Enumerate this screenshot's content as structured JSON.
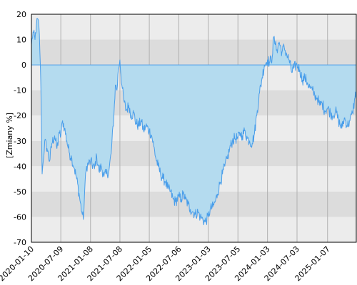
{
  "chart_data": {
    "type": "area",
    "title": "",
    "xlabel": "",
    "ylabel": "[Zmiany %]",
    "ylim": [
      -70,
      20
    ],
    "y_ticks": [
      20,
      10,
      0,
      -10,
      -20,
      -30,
      -40,
      -50,
      -60,
      -70
    ],
    "x_ticks": [
      "2020-01-10",
      "2020-07-09",
      "2021-01-08",
      "2021-07-08",
      "2022-01-05",
      "2022-07-06",
      "2023-01-03",
      "2023-07-05",
      "2024-01-03",
      "2024-07-03",
      "2025-01-07"
    ],
    "x_range": [
      "2020-01-10",
      "2025-07-03"
    ],
    "grid": true,
    "colors": {
      "line": "#4a9eea",
      "fill": "#b4dbef",
      "band_light": "#ececec",
      "band_dark": "#dcdcdc",
      "grid": "#b0b0b0",
      "border": "#000000",
      "zero_line": "#4a9eea"
    },
    "series": [
      {
        "points": [
          [
            "2020-01-10",
            8
          ],
          [
            "2020-01-20",
            13
          ],
          [
            "2020-02-01",
            10
          ],
          [
            "2020-02-10",
            16
          ],
          [
            "2020-02-20",
            18
          ],
          [
            "2020-02-28",
            12
          ],
          [
            "2020-03-05",
            0
          ],
          [
            "2020-03-10",
            -15
          ],
          [
            "2020-03-16",
            -43
          ],
          [
            "2020-03-23",
            -38
          ],
          [
            "2020-04-01",
            -30
          ],
          [
            "2020-04-15",
            -33
          ],
          [
            "2020-05-01",
            -38
          ],
          [
            "2020-05-15",
            -31
          ],
          [
            "2020-06-01",
            -28
          ],
          [
            "2020-06-15",
            -33
          ],
          [
            "2020-07-01",
            -27
          ],
          [
            "2020-07-09",
            -28
          ],
          [
            "2020-07-20",
            -22
          ],
          [
            "2020-08-01",
            -25
          ],
          [
            "2020-08-15",
            -30
          ],
          [
            "2020-09-01",
            -35
          ],
          [
            "2020-09-15",
            -37
          ],
          [
            "2020-10-01",
            -41
          ],
          [
            "2020-10-15",
            -45
          ],
          [
            "2020-11-01",
            -52
          ],
          [
            "2020-11-15",
            -58
          ],
          [
            "2020-11-25",
            -61
          ],
          [
            "2020-12-05",
            -47
          ],
          [
            "2020-12-15",
            -40
          ],
          [
            "2021-01-08",
            -38
          ],
          [
            "2021-02-01",
            -41
          ],
          [
            "2021-02-15",
            -36
          ],
          [
            "2021-03-01",
            -42
          ],
          [
            "2021-03-15",
            -40
          ],
          [
            "2021-04-01",
            -44
          ],
          [
            "2021-04-15",
            -43
          ],
          [
            "2021-05-01",
            -42
          ],
          [
            "2021-05-15",
            -35
          ],
          [
            "2021-06-01",
            -20
          ],
          [
            "2021-06-10",
            -8
          ],
          [
            "2021-06-20",
            -10
          ],
          [
            "2021-06-28",
            -2
          ],
          [
            "2021-07-08",
            2
          ],
          [
            "2021-07-20",
            -8
          ],
          [
            "2021-08-01",
            -14
          ],
          [
            "2021-08-15",
            -18
          ],
          [
            "2021-09-01",
            -16
          ],
          [
            "2021-09-15",
            -20
          ],
          [
            "2021-10-01",
            -19
          ],
          [
            "2021-10-15",
            -23
          ],
          [
            "2021-11-01",
            -24
          ],
          [
            "2021-11-15",
            -22
          ],
          [
            "2021-12-01",
            -26
          ],
          [
            "2021-12-15",
            -24
          ],
          [
            "2022-01-05",
            -26
          ],
          [
            "2022-01-20",
            -28
          ],
          [
            "2022-02-01",
            -32
          ],
          [
            "2022-02-15",
            -37
          ],
          [
            "2022-03-01",
            -40
          ],
          [
            "2022-03-15",
            -43
          ],
          [
            "2022-04-01",
            -45
          ],
          [
            "2022-04-15",
            -46
          ],
          [
            "2022-05-01",
            -49
          ],
          [
            "2022-05-15",
            -50
          ],
          [
            "2022-06-01",
            -53
          ],
          [
            "2022-06-15",
            -54
          ],
          [
            "2022-07-06",
            -52
          ],
          [
            "2022-07-20",
            -53
          ],
          [
            "2022-08-01",
            -51
          ],
          [
            "2022-08-15",
            -53
          ],
          [
            "2022-09-01",
            -55
          ],
          [
            "2022-09-15",
            -57
          ],
          [
            "2022-10-01",
            -58
          ],
          [
            "2022-10-15",
            -59
          ],
          [
            "2022-11-01",
            -58
          ],
          [
            "2022-11-15",
            -60
          ],
          [
            "2022-12-01",
            -61
          ],
          [
            "2022-12-15",
            -62
          ],
          [
            "2023-01-03",
            -60
          ],
          [
            "2023-01-15",
            -57
          ],
          [
            "2023-02-01",
            -56
          ],
          [
            "2023-02-15",
            -54
          ],
          [
            "2023-03-01",
            -51
          ],
          [
            "2023-03-15",
            -47
          ],
          [
            "2023-04-01",
            -43
          ],
          [
            "2023-04-15",
            -40
          ],
          [
            "2023-05-01",
            -37
          ],
          [
            "2023-05-15",
            -33
          ],
          [
            "2023-06-01",
            -30
          ],
          [
            "2023-06-15",
            -29
          ],
          [
            "2023-07-05",
            -29
          ],
          [
            "2023-07-20",
            -27
          ],
          [
            "2023-08-01",
            -28
          ],
          [
            "2023-08-15",
            -26
          ],
          [
            "2023-09-01",
            -29
          ],
          [
            "2023-09-15",
            -30
          ],
          [
            "2023-10-01",
            -31
          ],
          [
            "2023-10-15",
            -27
          ],
          [
            "2023-11-01",
            -18
          ],
          [
            "2023-11-15",
            -11
          ],
          [
            "2023-12-01",
            -5
          ],
          [
            "2023-12-15",
            0
          ],
          [
            "2024-01-03",
            2
          ],
          [
            "2024-01-15",
            1
          ],
          [
            "2024-02-01",
            3
          ],
          [
            "2024-02-10",
            11
          ],
          [
            "2024-02-20",
            8
          ],
          [
            "2024-03-01",
            6
          ],
          [
            "2024-03-15",
            9
          ],
          [
            "2024-04-01",
            5
          ],
          [
            "2024-04-15",
            7
          ],
          [
            "2024-05-01",
            4
          ],
          [
            "2024-05-15",
            2
          ],
          [
            "2024-06-01",
            -3
          ],
          [
            "2024-06-15",
            -1
          ],
          [
            "2024-07-03",
            0
          ],
          [
            "2024-07-20",
            -2
          ],
          [
            "2024-08-05",
            -6
          ],
          [
            "2024-08-20",
            -5
          ],
          [
            "2024-09-05",
            -7
          ],
          [
            "2024-09-20",
            -9
          ],
          [
            "2024-10-05",
            -10
          ],
          [
            "2024-10-20",
            -12
          ],
          [
            "2024-11-05",
            -13
          ],
          [
            "2024-11-20",
            -16
          ],
          [
            "2024-12-05",
            -15
          ],
          [
            "2024-12-20",
            -18
          ],
          [
            "2025-01-07",
            -17
          ],
          [
            "2025-01-25",
            -19
          ],
          [
            "2025-02-10",
            -20
          ],
          [
            "2025-02-25",
            -18
          ],
          [
            "2025-03-15",
            -22
          ],
          [
            "2025-04-05",
            -25
          ],
          [
            "2025-04-20",
            -21
          ],
          [
            "2025-05-10",
            -24
          ],
          [
            "2025-05-25",
            -22
          ],
          [
            "2025-06-10",
            -19
          ],
          [
            "2025-06-25",
            -13
          ],
          [
            "2025-07-03",
            -10
          ]
        ]
      }
    ]
  }
}
